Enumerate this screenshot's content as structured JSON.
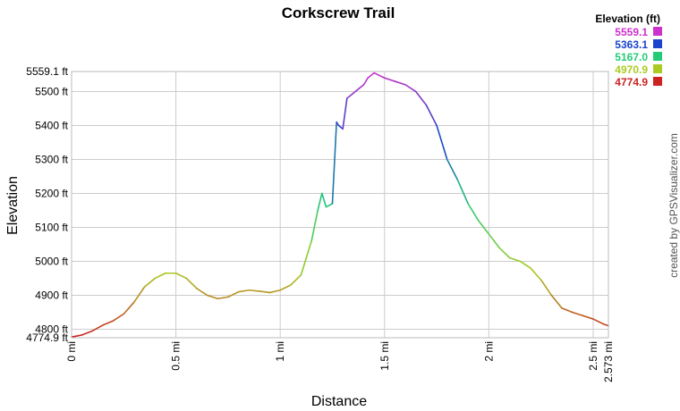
{
  "chart_data": {
    "type": "line",
    "title": "Corkscrew Trail",
    "xlabel": "Distance",
    "ylabel": "Elevation",
    "xlim": [
      0,
      2.573
    ],
    "ylim": [
      4774.9,
      5559.1
    ],
    "grid": true,
    "x_ticks": [
      {
        "value": 0,
        "label": "0 mi"
      },
      {
        "value": 0.5,
        "label": "0.5 mi"
      },
      {
        "value": 1,
        "label": "1 mi"
      },
      {
        "value": 1.5,
        "label": "1.5 mi"
      },
      {
        "value": 2,
        "label": "2 mi"
      },
      {
        "value": 2.5,
        "label": "2.5 mi"
      },
      {
        "value": 2.573,
        "label": "2.573 mi"
      }
    ],
    "y_ticks": [
      {
        "value": 4774.9,
        "label": "4774.9 ft"
      },
      {
        "value": 4800,
        "label": "4800 ft"
      },
      {
        "value": 4900,
        "label": "4900 ft"
      },
      {
        "value": 5000,
        "label": "5000 ft"
      },
      {
        "value": 5100,
        "label": "5100 ft"
      },
      {
        "value": 5200,
        "label": "5200 ft"
      },
      {
        "value": 5300,
        "label": "5300 ft"
      },
      {
        "value": 5400,
        "label": "5400 ft"
      },
      {
        "value": 5500,
        "label": "5500 ft"
      },
      {
        "value": 5559.1,
        "label": "5559.1 ft"
      }
    ],
    "legend": {
      "title": "Elevation (ft)",
      "position": "top-right",
      "entries": [
        {
          "label": "5559.1",
          "color": "#cc33cc"
        },
        {
          "label": "5363.1",
          "color": "#1a44cc"
        },
        {
          "label": "5167.0",
          "color": "#22cc77"
        },
        {
          "label": "4970.9",
          "color": "#aacc22"
        },
        {
          "label": "4774.9",
          "color": "#cc2222"
        }
      ]
    },
    "series": [
      {
        "x": [
          0,
          0.05,
          0.1,
          0.15,
          0.2,
          0.25,
          0.3,
          0.35,
          0.4,
          0.45,
          0.5,
          0.55,
          0.6,
          0.65,
          0.7,
          0.75,
          0.8,
          0.85,
          0.9,
          0.95,
          1.0,
          1.05,
          1.1,
          1.15,
          1.18,
          1.2,
          1.22,
          1.25,
          1.27,
          1.28,
          1.3,
          1.32,
          1.35,
          1.38,
          1.4,
          1.42,
          1.45,
          1.5,
          1.55,
          1.6,
          1.65,
          1.7,
          1.75,
          1.8,
          1.85,
          1.9,
          1.95,
          2.0,
          2.05,
          2.1,
          2.15,
          2.2,
          2.25,
          2.3,
          2.35,
          2.4,
          2.45,
          2.5,
          2.55,
          2.573
        ],
        "y": [
          4777,
          4783,
          4795,
          4812,
          4825,
          4845,
          4880,
          4925,
          4950,
          4965,
          4965,
          4950,
          4920,
          4900,
          4890,
          4895,
          4910,
          4915,
          4912,
          4908,
          4915,
          4930,
          4960,
          5060,
          5150,
          5200,
          5160,
          5170,
          5410,
          5400,
          5390,
          5480,
          5495,
          5510,
          5520,
          5540,
          5555,
          5540,
          5530,
          5520,
          5500,
          5460,
          5400,
          5300,
          5240,
          5170,
          5120,
          5080,
          5040,
          5010,
          5000,
          4980,
          4945,
          4900,
          4862,
          4850,
          4840,
          4830,
          4815,
          4810
        ]
      }
    ]
  },
  "credit": "created by GPSVisualizer.com"
}
